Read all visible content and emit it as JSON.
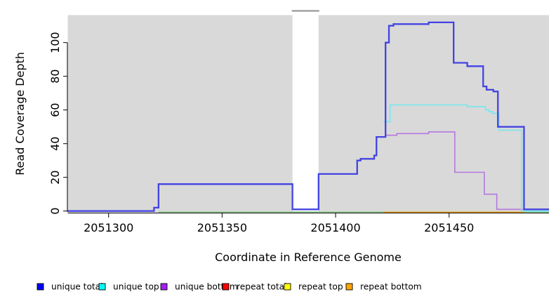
{
  "figure": {
    "background": "#ffffff",
    "plot_background": "#d9d9d9",
    "mask_cap_color": "#8e8e8e",
    "axis_color": "#000000"
  },
  "chart_data": {
    "type": "line",
    "step": true,
    "title": "",
    "xlabel": "Coordinate in Reference Genome",
    "ylabel": "Read Coverage Depth",
    "xlim": [
      2051282,
      2051494
    ],
    "ylim": [
      0,
      116
    ],
    "x_ticks": [
      2051300,
      2051350,
      2051400,
      2051450
    ],
    "y_ticks": [
      0,
      20,
      40,
      60,
      80,
      100
    ],
    "grid": false,
    "legend_position": "bottom",
    "masked_region": {
      "x_start": 2051381,
      "x_end": 2051392.5,
      "fill": "#ffffff"
    },
    "series": [
      {
        "name": "repeat top",
        "legend_color": "#ffff00",
        "line_color": "#8fcd8f",
        "width": 1.6,
        "dy": 1.4,
        "points": [
          [
            2051322,
            0
          ]
        ],
        "x_end": 2051494
      },
      {
        "name": "repeat bottom",
        "legend_color": "#ffa500",
        "line_color": "#ff9d1e",
        "width": 2.0,
        "dy": 1.9,
        "points": [
          [
            2051421,
            0
          ]
        ],
        "x_end": 2051483
      },
      {
        "name": "repeat total",
        "legend_color": "#ff0000",
        "line_color": "#ff0000",
        "width": 1.6,
        "dy": 0,
        "points": [],
        "x_end": null
      },
      {
        "name": "unique bottom",
        "legend_color": "#a020f0",
        "line_color": "#b678de",
        "width": 1.6,
        "dy": 0,
        "points": [
          [
            2051421.7,
            45
          ],
          [
            2051427,
            46
          ],
          [
            2051441,
            47
          ],
          [
            2051452.5,
            23
          ],
          [
            2051465.5,
            10
          ],
          [
            2051471,
            1
          ]
        ],
        "x_end": 2051494
      },
      {
        "name": "unique top",
        "legend_color": "#00ffff",
        "line_color": "#74e8f0",
        "width": 1.6,
        "dy": 0,
        "points": [
          [
            2051421,
            53
          ],
          [
            2051424,
            63
          ],
          [
            2051458,
            62
          ],
          [
            2051466,
            60
          ],
          [
            2051467.5,
            59
          ],
          [
            2051469,
            58
          ],
          [
            2051472,
            48
          ],
          [
            2051482,
            0
          ]
        ],
        "x_end": 2051494
      },
      {
        "name": "unique total",
        "legend_color": "#0000ff",
        "line_color": "#4343e2",
        "width": 2.3,
        "dy": 0,
        "points": [
          [
            2051282,
            0
          ],
          [
            2051320,
            2
          ],
          [
            2051322,
            16
          ],
          [
            2051381,
            1
          ],
          [
            2051392.5,
            22
          ],
          [
            2051409.5,
            30
          ],
          [
            2051411,
            31
          ],
          [
            2051417,
            33
          ],
          [
            2051418,
            44
          ],
          [
            2051422,
            100
          ],
          [
            2051423.5,
            110
          ],
          [
            2051425.5,
            111
          ],
          [
            2051441,
            112
          ],
          [
            2051452,
            88
          ],
          [
            2051458,
            86
          ],
          [
            2051465,
            74
          ],
          [
            2051466.5,
            72
          ],
          [
            2051469.5,
            71
          ],
          [
            2051471.5,
            50
          ],
          [
            2051483,
            1
          ]
        ],
        "x_end": 2051494
      }
    ],
    "legend": {
      "entries": [
        {
          "label": "unique total",
          "color": "#0000ff"
        },
        {
          "label": "unique top",
          "color": "#00ffff"
        },
        {
          "label": "unique bottom",
          "color": "#a020f0"
        },
        {
          "label": "repeat total",
          "color": "#ff0000"
        },
        {
          "label": "repeat top",
          "color": "#ffff00"
        },
        {
          "label": "repeat bottom",
          "color": "#ffa500"
        }
      ]
    }
  }
}
